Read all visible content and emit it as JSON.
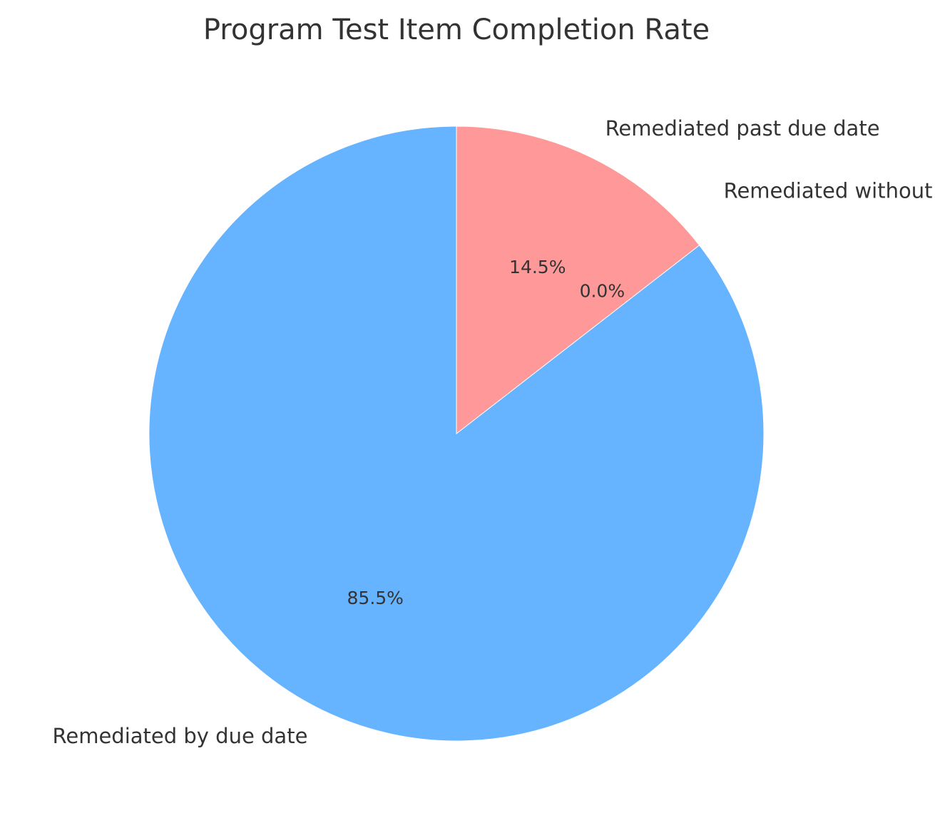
{
  "chart_data": {
    "type": "pie",
    "title": "Program Test Item Completion Rate",
    "slices": [
      {
        "label": "Remediated by due date",
        "value": 85.5,
        "pct_label": "85.5%",
        "color": "#66b3ff"
      },
      {
        "label": "Remediated without due date",
        "value": 0.0,
        "pct_label": "0.0%",
        "color": "#ffcc99"
      },
      {
        "label": "Remediated past due date",
        "value": 14.5,
        "pct_label": "14.5%",
        "color": "#ff9999"
      }
    ],
    "start_angle": "top",
    "direction": "counterclockwise",
    "legend": "none"
  }
}
